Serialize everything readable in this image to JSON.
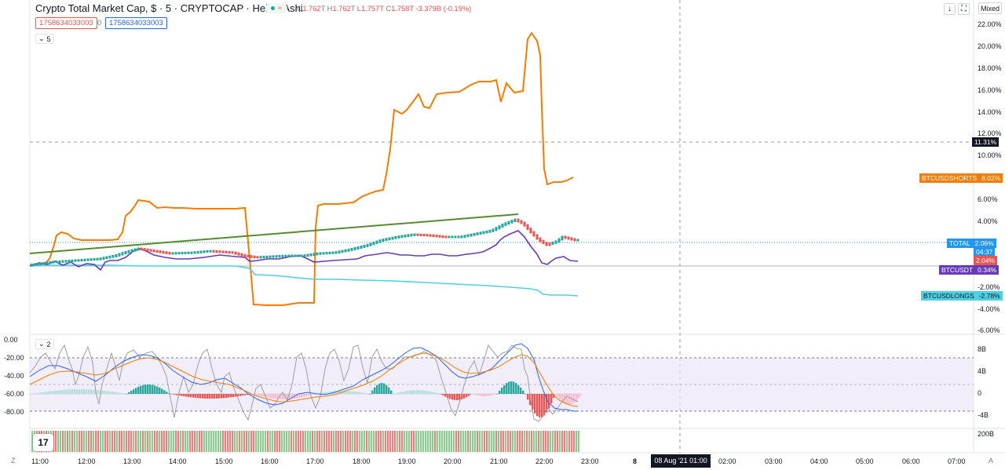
{
  "header": {
    "title": "Crypto Total Market Cap, $ · 5 · CRYPTOCAP · Heikin Ashi",
    "status_symbol": "≈",
    "ohlc": {
      "o_key": "O",
      "o_val": "1.762T",
      "h_key": "H",
      "h_val": "1.762T",
      "l_key": "L",
      "l_val": "1.757T",
      "c_key": "C",
      "c_val": "1.758T",
      "change": "-3.379B (-0.19%)"
    },
    "input_red": "1758634033003",
    "zero_label": "0",
    "input_blue": "1758634033003",
    "collapse_main": "5",
    "collapse_osc": "2",
    "btn_down": "↓",
    "btn_fullscreen": "⛶",
    "btn_mixed": "Mixed"
  },
  "price_axis": {
    "ticks": [
      "22.00%",
      "20.00%",
      "18.00%",
      "16.00%",
      "14.00%",
      "12.00%",
      "10.00%",
      "6.00%",
      "4.00%",
      "-2.00%",
      "-4.00%",
      "-6.00%"
    ],
    "tags": {
      "crosshair": "11.31%",
      "btcusdshorts_name": "BTCUSDSHORTS",
      "btcusdshorts_val": "8.02%",
      "total_name": "TOTAL",
      "total_val": "2.06%",
      "total_timer": "04:37",
      "red_val": "2.04%",
      "btcusdt_name": "BTCUSDT",
      "btcusdt_val": "0.34%",
      "btcusdlongs_name": "BTCUSDLONGS",
      "btcusdlongs_val": "-2.78%"
    }
  },
  "oscillator": {
    "left_ticks": [
      "0.00",
      "-20.00",
      "-40.00",
      "-60.00",
      "-80.00"
    ],
    "right_ticks": [
      "8B",
      "4B",
      "0",
      "-4B"
    ]
  },
  "volume": {
    "right_tick": "200B",
    "logo": "17"
  },
  "time_axis": {
    "labels": [
      "11:00",
      "12:00",
      "13:00",
      "14:00",
      "15:00",
      "16:00",
      "17:00",
      "18:00",
      "19:00",
      "20:00",
      "21:00",
      "22:00",
      "23:00",
      "8",
      "02:00",
      "03:00",
      "04:00",
      "05:00",
      "06:00",
      "07:00"
    ],
    "highlight": "08 Aug '21  01:00",
    "corner_left": "Z",
    "corner_right": "A"
  },
  "colors": {
    "up": "#26a69a",
    "down": "#ef5350",
    "shorts": "#f57c00",
    "longs": "#4dd0e1",
    "btcusdt": "#673ab7",
    "total": "#2196f3",
    "trend": "#558b2f"
  }
}
